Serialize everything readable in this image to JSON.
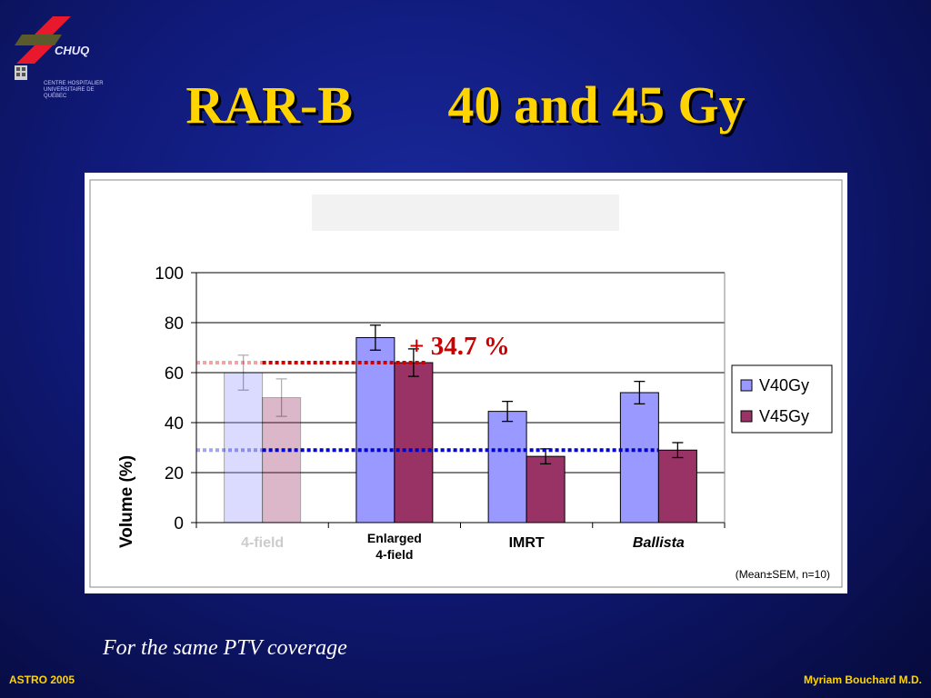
{
  "logo": {
    "text": "CHUQ",
    "subtitle": "CENTRE HOSPITALIER UNIVERSITAIRE DE QUÉBEC"
  },
  "slide": {
    "title_left": "RAR-B",
    "title_right": "40 and 45 Gy"
  },
  "chart_data": {
    "type": "bar",
    "categories": [
      "4-field",
      "Enlarged\n4-field",
      "IMRT",
      "Ballista"
    ],
    "series": [
      {
        "name": "V40Gy",
        "values": [
          60,
          74,
          44.5,
          52
        ],
        "errors": [
          7,
          5,
          4,
          4.5
        ],
        "color": "#9999ff"
      },
      {
        "name": "V45Gy",
        "values": [
          50,
          64,
          26.5,
          29
        ],
        "errors": [
          7.5,
          5.5,
          3,
          3
        ],
        "color": "#993366"
      }
    ],
    "ylabel": "Volume (%)",
    "ylim": [
      0,
      100
    ],
    "yticks": [
      0,
      20,
      40,
      60,
      80,
      100
    ],
    "grid": true,
    "legend": "right",
    "annotation": "+ 34.7 %",
    "reference_lines": [
      {
        "value": 64,
        "color": "#cc0000"
      },
      {
        "value": 29,
        "color": "#0000cc"
      }
    ],
    "faded_category": 0,
    "footnote": "(Mean±SEM, n=10)"
  },
  "note": "For the same PTV coverage",
  "footer": {
    "left": "ASTRO 2005",
    "right": "Myriam Bouchard M.D."
  }
}
